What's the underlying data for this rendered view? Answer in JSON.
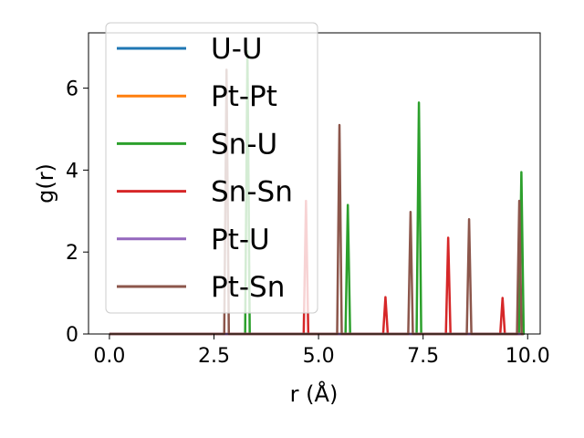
{
  "chart_data": {
    "type": "line",
    "xlabel": "r (Å)",
    "ylabel": "g(r)",
    "xlim": [
      -0.5,
      10.3
    ],
    "ylim": [
      0,
      7.35
    ],
    "xticks": [
      0.0,
      2.5,
      5.0,
      7.5,
      10.0
    ],
    "xtick_labels": [
      "0.0",
      "2.5",
      "5.0",
      "7.5",
      "10.0"
    ],
    "yticks": [
      0,
      2,
      4,
      6
    ],
    "ytick_labels": [
      "0",
      "2",
      "4",
      "6"
    ],
    "grid": false,
    "legend_position": "top-left",
    "baseline": {
      "x_start": 0.0,
      "x_end": 9.9,
      "y": 0
    },
    "peak_halfwidth": 0.055,
    "series": [
      {
        "name": "U-U",
        "color": "#1f77b4",
        "peaks": []
      },
      {
        "name": "Pt-Pt",
        "color": "#ff7f0e",
        "peaks": []
      },
      {
        "name": "Sn-U",
        "color": "#2ca02c",
        "peaks": [
          [
            3.3,
            6.9
          ],
          [
            5.7,
            3.15
          ],
          [
            7.4,
            5.65
          ],
          [
            9.85,
            3.95
          ]
        ]
      },
      {
        "name": "Sn-Sn",
        "color": "#d62728",
        "peaks": [
          [
            4.7,
            3.25
          ],
          [
            6.6,
            0.9
          ],
          [
            8.1,
            2.35
          ],
          [
            9.4,
            0.88
          ]
        ]
      },
      {
        "name": "Pt-U",
        "color": "#9467bd",
        "peaks": []
      },
      {
        "name": "Pt-Sn",
        "color": "#8c564b",
        "peaks": [
          [
            2.8,
            6.45
          ],
          [
            5.5,
            5.1
          ],
          [
            7.2,
            2.98
          ],
          [
            8.6,
            2.8
          ],
          [
            9.8,
            3.25
          ]
        ]
      }
    ]
  }
}
